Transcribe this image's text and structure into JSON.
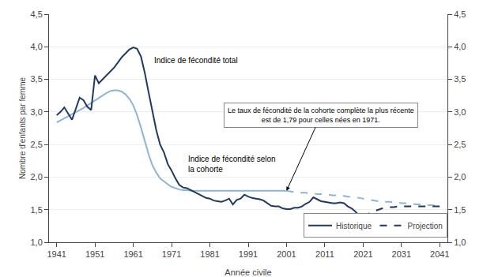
{
  "chart_data": {
    "type": "line",
    "xlabel": "Année civile",
    "ylabel": "Nombre d'enfants par femme",
    "series": [
      {
        "color": "#8db4d9",
        "line_style": "solid",
        "x": [
          1941,
          1942,
          1943,
          1944,
          1945,
          1946,
          1947,
          1948,
          1949,
          1950,
          1951,
          1952,
          1953,
          1954,
          1955,
          1956,
          1957,
          1958,
          1959,
          1960,
          1961,
          1962,
          1963,
          1964,
          1965,
          1966,
          1967,
          1968,
          1969,
          1970,
          1971,
          1972,
          1973,
          1974,
          1975,
          1976,
          1977,
          1978,
          1979,
          1980,
          1981,
          1982,
          1983,
          1984,
          1985,
          1986,
          1987,
          1988,
          1989,
          1990,
          1991,
          1992,
          1993,
          1994,
          1995,
          1996,
          1997,
          1998,
          1999,
          2000,
          2001
        ],
        "values": [
          2.84,
          2.87,
          2.9,
          2.93,
          2.96,
          2.99,
          3.02,
          3.06,
          3.1,
          3.14,
          3.18,
          3.22,
          3.26,
          3.29,
          3.32,
          3.33,
          3.33,
          3.31,
          3.27,
          3.2,
          3.1,
          2.95,
          2.76,
          2.55,
          2.35,
          2.18,
          2.07,
          1.98,
          1.93,
          1.89,
          1.85,
          1.83,
          1.81,
          1.8,
          1.8,
          1.79,
          1.79,
          1.79,
          1.79,
          1.79,
          1.79,
          1.79,
          1.79,
          1.79,
          1.79,
          1.79,
          1.79,
          1.79,
          1.79,
          1.79,
          1.79,
          1.79,
          1.79,
          1.79,
          1.79,
          1.79,
          1.79,
          1.79,
          1.79,
          1.79,
          1.79
        ]
      },
      {
        "color": "#8db4d9",
        "line_style": "dashed",
        "x": [
          2001,
          2002,
          2003,
          2004,
          2005,
          2006,
          2007,
          2008,
          2009,
          2010,
          2011,
          2012,
          2013,
          2014,
          2015,
          2016,
          2017,
          2018,
          2019,
          2020,
          2021,
          2022,
          2023,
          2024,
          2025,
          2026,
          2027,
          2028,
          2029,
          2030,
          2031,
          2032,
          2033,
          2034,
          2035,
          2036,
          2037,
          2038,
          2039,
          2040,
          2041
        ],
        "values": [
          1.79,
          1.78,
          1.77,
          1.77,
          1.76,
          1.76,
          1.75,
          1.75,
          1.74,
          1.74,
          1.73,
          1.73,
          1.72,
          1.72,
          1.71,
          1.71,
          1.7,
          1.7,
          1.69,
          1.68,
          1.67,
          1.66,
          1.65,
          1.64,
          1.63,
          1.63,
          1.62,
          1.62,
          1.61,
          1.61,
          1.6,
          1.6,
          1.59,
          1.59,
          1.58,
          1.58,
          1.57,
          1.57,
          1.57,
          1.56,
          1.56
        ]
      },
      {
        "name": "Historique",
        "color": "#1f3864",
        "line_style": "solid",
        "x": [
          1941,
          1942,
          1943,
          1944,
          1945,
          1946,
          1947,
          1948,
          1949,
          1950,
          1951,
          1952,
          1953,
          1954,
          1955,
          1956,
          1957,
          1958,
          1959,
          1960,
          1961,
          1962,
          1963,
          1964,
          1965,
          1966,
          1967,
          1968,
          1969,
          1970,
          1971,
          1972,
          1973,
          1974,
          1975,
          1976,
          1977,
          1978,
          1979,
          1980,
          1981,
          1982,
          1983,
          1984,
          1985,
          1986,
          1987,
          1988,
          1989,
          1990,
          1991,
          1992,
          1993,
          1994,
          1995,
          1996,
          1997,
          1998,
          1999,
          2000,
          2001,
          2002,
          2003,
          2004,
          2005,
          2006,
          2007,
          2008,
          2009,
          2010,
          2011,
          2012,
          2013,
          2014,
          2015,
          2016,
          2017,
          2018,
          2019,
          2020,
          2021
        ],
        "values": [
          2.95,
          3.0,
          3.07,
          2.97,
          2.88,
          3.05,
          3.22,
          3.18,
          3.08,
          3.03,
          3.56,
          3.44,
          3.5,
          3.57,
          3.62,
          3.68,
          3.76,
          3.84,
          3.9,
          3.96,
          3.99,
          3.97,
          3.85,
          3.6,
          3.3,
          3.0,
          2.72,
          2.5,
          2.38,
          2.2,
          2.1,
          1.98,
          1.88,
          1.84,
          1.83,
          1.8,
          1.77,
          1.74,
          1.72,
          1.68,
          1.67,
          1.64,
          1.63,
          1.62,
          1.64,
          1.67,
          1.58,
          1.65,
          1.67,
          1.73,
          1.7,
          1.68,
          1.67,
          1.66,
          1.64,
          1.6,
          1.56,
          1.55,
          1.55,
          1.52,
          1.51,
          1.51,
          1.53,
          1.53,
          1.55,
          1.59,
          1.62,
          1.69,
          1.66,
          1.63,
          1.62,
          1.61,
          1.6,
          1.6,
          1.61,
          1.6,
          1.55,
          1.52,
          1.47,
          1.4,
          1.4
        ]
      },
      {
        "name": "Projection",
        "color": "#1f3864",
        "line_style": "dashed",
        "x": [
          2021,
          2022,
          2023,
          2024,
          2025,
          2026,
          2027,
          2028,
          2029,
          2030,
          2031,
          2032,
          2033,
          2034,
          2035,
          2036,
          2037,
          2038,
          2039,
          2040,
          2041
        ],
        "values": [
          1.4,
          1.43,
          1.46,
          1.48,
          1.5,
          1.52,
          1.53,
          1.54,
          1.54,
          1.55,
          1.55,
          1.55,
          1.55,
          1.55,
          1.55,
          1.55,
          1.55,
          1.55,
          1.55,
          1.55,
          1.55
        ]
      }
    ],
    "xlim": [
      1939,
      2043
    ],
    "xticks": [
      1941,
      1951,
      1961,
      1971,
      1981,
      1991,
      2001,
      2011,
      2021,
      2031,
      2041
    ],
    "ylim": [
      1.0,
      4.5
    ],
    "yticks": [
      {
        "value": 1.0,
        "label": "1,0"
      },
      {
        "value": 1.5,
        "label": "1,5"
      },
      {
        "value": 2.0,
        "label": "2,0"
      },
      {
        "value": 2.5,
        "label": "2,5"
      },
      {
        "value": 3.0,
        "label": "3,0"
      },
      {
        "value": 3.5,
        "label": "3,5"
      },
      {
        "value": 4.0,
        "label": "4,0"
      },
      {
        "value": 4.5,
        "label": "4,5"
      }
    ],
    "y2lim": [
      1.0,
      4.5
    ],
    "y2ticks": [
      {
        "value": 1.0,
        "label": "1,0"
      },
      {
        "value": 1.5,
        "label": "1,5"
      },
      {
        "value": 2.0,
        "label": "2,0"
      },
      {
        "value": 2.5,
        "label": "2,5"
      },
      {
        "value": 3.0,
        "label": "3,0"
      },
      {
        "value": 3.5,
        "label": "3,5"
      },
      {
        "value": 4.0,
        "label": "4,0"
      },
      {
        "value": 4.5,
        "label": "4,5"
      }
    ],
    "grid": "y",
    "legend": "lower right",
    "annotations": [
      {
        "text": "Indice de fécondité total"
      },
      {
        "text": "Indice de fécondité selon\nla cohorte"
      },
      {
        "text": "Le taux de fécondité de la cohorte complète la plus récente\nest de 1,79 pour celles nées en 1971."
      }
    ]
  }
}
